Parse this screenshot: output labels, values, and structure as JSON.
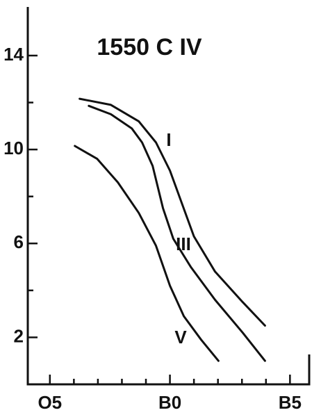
{
  "chart_data": {
    "type": "line",
    "title": "1550   C IV",
    "xlim": [
      -0.92,
      10.8
    ],
    "ylim": [
      0,
      16.1
    ],
    "xticks": [
      {
        "value": 0,
        "label": "O5"
      },
      {
        "value": 5,
        "label": "B0"
      },
      {
        "value": 10,
        "label": "B5"
      }
    ],
    "xticks_minor": [
      1,
      2,
      3,
      4,
      6,
      7,
      8,
      9
    ],
    "yticks": [
      2,
      6,
      10,
      14
    ],
    "yticks_minor": [
      4,
      8,
      12
    ],
    "series": [
      {
        "name": "I",
        "color": "#111111",
        "x": [
          1.24,
          2.54,
          3.7,
          4.42,
          5.0,
          5.43,
          6.0,
          6.88,
          8.03,
          8.96
        ],
        "values": [
          12.16,
          11.9,
          11.2,
          10.3,
          9.1,
          7.9,
          6.3,
          4.8,
          3.5,
          2.5
        ]
      },
      {
        "name": "III",
        "color": "#111111",
        "x": [
          1.62,
          2.54,
          3.41,
          3.84,
          4.28,
          4.71,
          5.14,
          5.87,
          6.88,
          8.03,
          8.96
        ],
        "values": [
          11.86,
          11.5,
          10.9,
          10.3,
          9.3,
          7.5,
          6.2,
          5.0,
          3.6,
          2.2,
          1.0
        ]
      },
      {
        "name": "V",
        "color": "#111111",
        "x": [
          1.04,
          1.97,
          2.83,
          3.7,
          4.42,
          5.0,
          5.58,
          6.3,
          7.02
        ],
        "values": [
          10.15,
          9.6,
          8.6,
          7.3,
          5.9,
          4.2,
          2.9,
          1.9,
          1.0
        ]
      }
    ]
  }
}
